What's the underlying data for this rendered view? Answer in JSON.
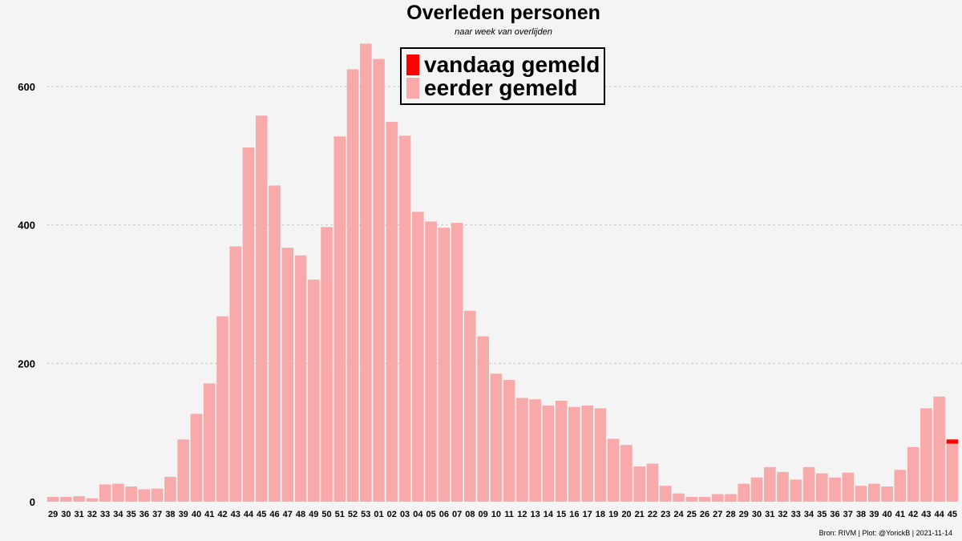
{
  "chart_data": {
    "type": "bar",
    "title": "Overleden personen",
    "subtitle": "naar week van overlijden",
    "xlabel": "",
    "ylabel": "",
    "ylim": [
      0,
      700
    ],
    "yticks": [
      0,
      200,
      400,
      600
    ],
    "grid": true,
    "categories": [
      "29",
      "30",
      "31",
      "32",
      "33",
      "34",
      "35",
      "36",
      "37",
      "38",
      "39",
      "40",
      "41",
      "42",
      "43",
      "44",
      "45",
      "46",
      "47",
      "48",
      "49",
      "50",
      "51",
      "52",
      "53",
      "01",
      "02",
      "03",
      "04",
      "05",
      "06",
      "07",
      "08",
      "09",
      "10",
      "11",
      "12",
      "13",
      "14",
      "15",
      "16",
      "17",
      "18",
      "19",
      "20",
      "21",
      "22",
      "23",
      "24",
      "25",
      "26",
      "27",
      "28",
      "29",
      "30",
      "31",
      "32",
      "33",
      "34",
      "35",
      "36",
      "37",
      "38",
      "39",
      "40",
      "41",
      "42",
      "43",
      "44",
      "45"
    ],
    "series": [
      {
        "name": "eerder gemeld",
        "color": "#f8aaaa",
        "values": [
          7,
          7,
          8,
          5,
          25,
          26,
          22,
          18,
          19,
          36,
          90,
          127,
          171,
          268,
          369,
          512,
          558,
          457,
          367,
          356,
          321,
          397,
          528,
          625,
          662,
          640,
          549,
          529,
          419,
          405,
          396,
          403,
          276,
          239,
          185,
          176,
          150,
          148,
          139,
          146,
          137,
          139,
          135,
          91,
          82,
          51,
          55,
          23,
          12,
          7,
          7,
          11,
          11,
          26,
          35,
          50,
          43,
          32,
          50,
          41,
          35,
          42,
          23,
          26,
          22,
          46,
          79,
          135,
          152,
          84
        ]
      },
      {
        "name": "vandaag gemeld",
        "color": "#ff0000",
        "values": [
          0,
          0,
          0,
          0,
          0,
          0,
          0,
          0,
          0,
          0,
          0,
          0,
          0,
          0,
          0,
          0,
          0,
          0,
          0,
          0,
          0,
          0,
          0,
          0,
          0,
          0,
          0,
          0,
          0,
          0,
          0,
          0,
          0,
          0,
          0,
          0,
          0,
          0,
          0,
          0,
          0,
          0,
          0,
          0,
          0,
          0,
          0,
          0,
          0,
          0,
          0,
          0,
          0,
          0,
          0,
          0,
          0,
          0,
          0,
          0,
          0,
          0,
          0,
          0,
          0,
          0,
          0,
          0,
          0,
          6
        ]
      }
    ],
    "legend": {
      "position": "top-center",
      "entries": [
        {
          "label": "vandaag gemeld",
          "color": "#ff0000"
        },
        {
          "label": "eerder gemeld",
          "color": "#f8aaaa"
        }
      ]
    },
    "caption": "Bron: RIVM | Plot: @YorickB |  2021-11-14"
  }
}
